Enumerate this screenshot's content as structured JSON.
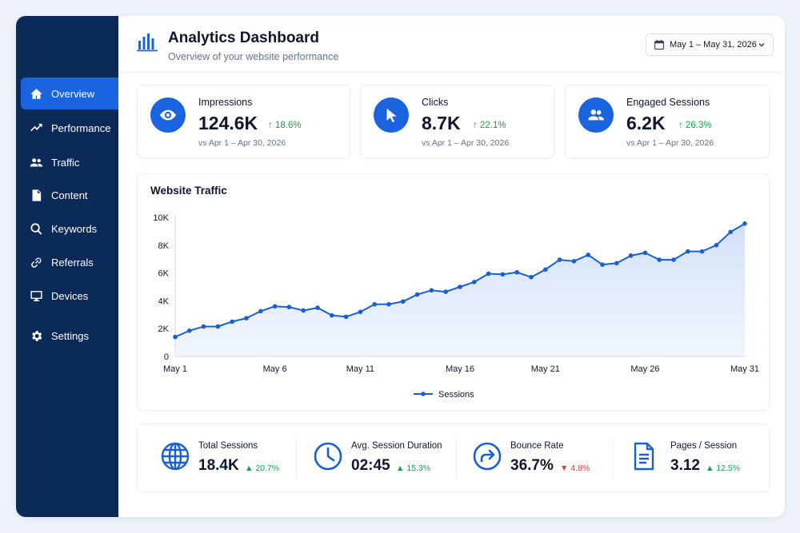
{
  "header": {
    "title": "Analytics Dashboard",
    "subtitle": "Overview of your website performance",
    "date_range": "May 1 – May 31, 2026"
  },
  "sidebar": {
    "items": [
      {
        "label": "Overview",
        "icon": "home-icon",
        "active": true
      },
      {
        "label": "Performance",
        "icon": "trend-icon",
        "active": false
      },
      {
        "label": "Traffic",
        "icon": "users-icon",
        "active": false
      },
      {
        "label": "Content",
        "icon": "document-icon",
        "active": false
      },
      {
        "label": "Keywords",
        "icon": "search-icon",
        "active": false
      },
      {
        "label": "Referrals",
        "icon": "link-icon",
        "active": false
      },
      {
        "label": "Devices",
        "icon": "monitor-icon",
        "active": false
      },
      {
        "label": "Settings",
        "icon": "gear-icon",
        "active": false
      }
    ]
  },
  "kpis": [
    {
      "label": "Impressions",
      "value": "124.6K",
      "delta": "18.6%",
      "compare": "vs Apr 1 – Apr 30, 2026",
      "icon": "eye-icon"
    },
    {
      "label": "Clicks",
      "value": "8.7K",
      "delta": "22.1%",
      "compare": "vs Apr 1 – Apr 30, 2026",
      "icon": "cursor-icon"
    },
    {
      "label": "Engaged Sessions",
      "value": "6.2K",
      "delta": "26.3%",
      "compare": "vs Apr 1 – Apr 30, 2026",
      "icon": "people-icon"
    }
  ],
  "chart_data": {
    "type": "area",
    "title": "Website Traffic",
    "x": [
      1,
      2,
      3,
      4,
      5,
      6,
      7,
      8,
      9,
      10,
      11,
      12,
      13,
      14,
      15,
      16,
      17,
      18,
      19,
      20,
      21,
      22,
      23,
      24,
      25,
      26,
      27,
      28,
      29,
      30,
      31,
      32,
      33,
      34,
      35,
      36,
      37,
      38,
      39,
      40,
      41
    ],
    "series": [
      {
        "name": "Sessions",
        "values": [
          1400,
          1850,
          2150,
          2150,
          2500,
          2750,
          3250,
          3600,
          3550,
          3300,
          3500,
          2950,
          2850,
          3200,
          3750,
          3750,
          3950,
          4450,
          4750,
          4650,
          5000,
          5350,
          5950,
          5900,
          6050,
          5700,
          6250,
          6950,
          6850,
          7300,
          6600,
          6700,
          7250,
          7450,
          6950,
          6950,
          7550,
          7550,
          8000,
          8950,
          9550
        ]
      }
    ],
    "xticks": [
      {
        "label": "May 1",
        "x": 1
      },
      {
        "label": "May 6",
        "x": 8
      },
      {
        "label": "May 11",
        "x": 14
      },
      {
        "label": "May 16",
        "x": 21
      },
      {
        "label": "May 21",
        "x": 27
      },
      {
        "label": "May 26",
        "x": 34
      },
      {
        "label": "May 31",
        "x": 41
      }
    ],
    "yticks": [
      {
        "label": "0",
        "value": 0
      },
      {
        "label": "2K",
        "value": 2000
      },
      {
        "label": "4K",
        "value": 4000
      },
      {
        "label": "6K",
        "value": 6000
      },
      {
        "label": "8K",
        "value": 8000
      },
      {
        "label": "10K",
        "value": 10000
      }
    ],
    "ylim": [
      0,
      10000
    ],
    "legend": "bottom-center",
    "grid": false,
    "color": "#1a5fd0"
  },
  "metrics": [
    {
      "label": "Total Sessions",
      "value": "18.4K",
      "delta": "20.7%",
      "direction": "up",
      "icon": "globe-icon"
    },
    {
      "label": "Avg. Session Duration",
      "value": "02:45",
      "delta": "15.3%",
      "direction": "up",
      "icon": "clock-icon"
    },
    {
      "label": "Bounce Rate",
      "value": "36.7%",
      "delta": "4.8%",
      "direction": "down",
      "icon": "redirect-icon"
    },
    {
      "label": "Pages / Session",
      "value": "3.12",
      "delta": "12.5%",
      "direction": "up",
      "icon": "pages-icon"
    }
  ],
  "colors": {
    "accent": "#1a64e0",
    "sidebar": "#0b2a57",
    "up": "#1a9e4b",
    "down": "#e0393e"
  }
}
